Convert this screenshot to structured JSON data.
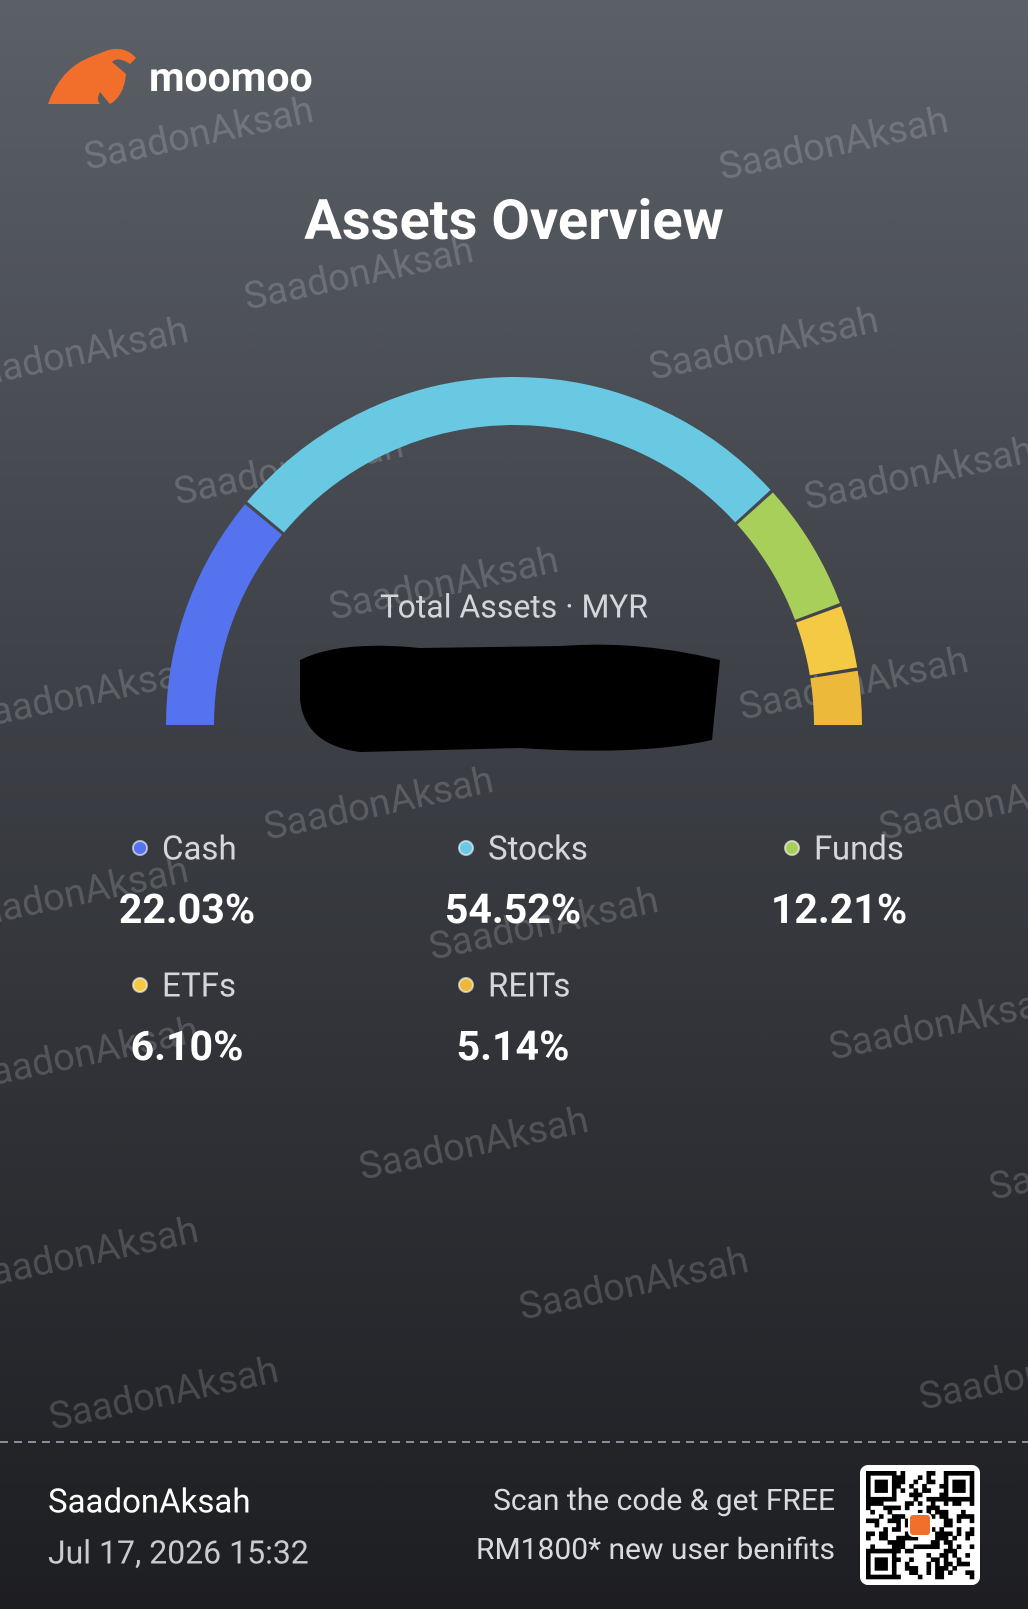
{
  "brand": "moomoo",
  "chart_data": {
    "type": "semi-donut",
    "title": "Assets Overview",
    "subtitle": "Total Assets · MYR",
    "categories": [
      "Cash",
      "Stocks",
      "Funds",
      "ETFs",
      "REITs"
    ],
    "values": [
      22.03,
      54.52,
      12.21,
      6.1,
      5.14
    ],
    "value_labels": [
      "22.03%",
      "54.52%",
      "12.21%",
      "6.10%",
      "5.14%"
    ],
    "colors": [
      "#5572ef",
      "#69c9e3",
      "#a9cf5b",
      "#f4c944",
      "#ecb93a"
    ]
  },
  "watermark": "SaadonAksah",
  "footer": {
    "user": "SaadonAksah",
    "datetime": "Jul 17, 2026 15:32",
    "promo": [
      "Scan the code & get FREE",
      "RM1800* new user benifits"
    ]
  }
}
